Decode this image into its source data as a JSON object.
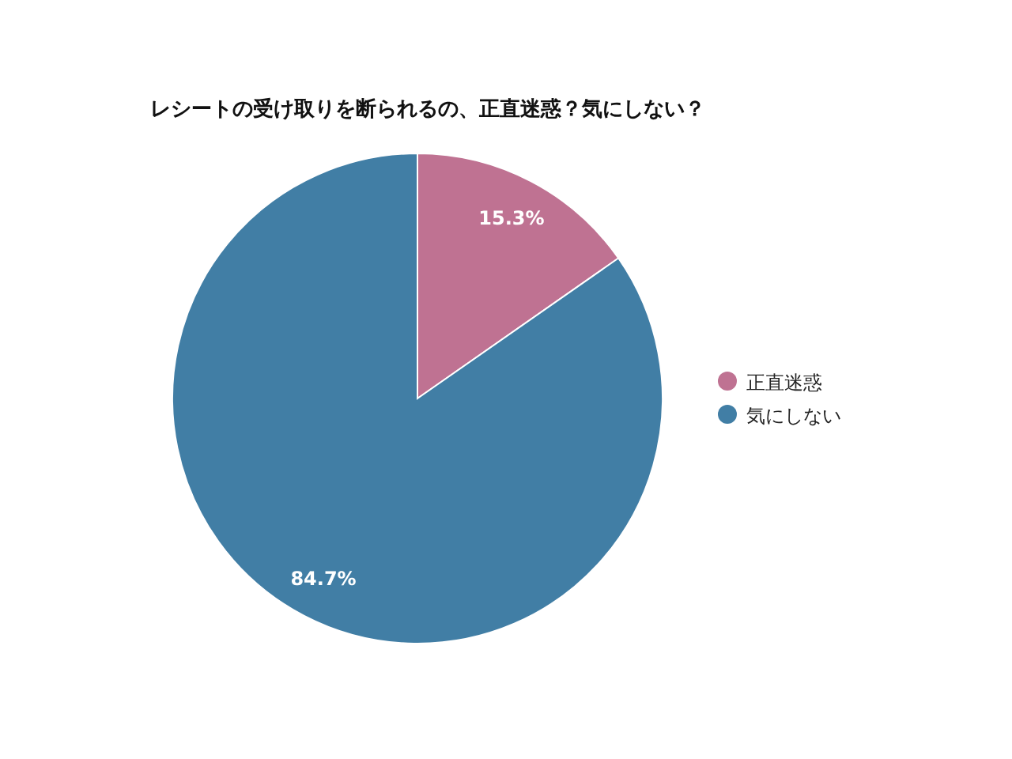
{
  "chart_data": {
    "type": "pie",
    "title": "レシートの受け取りを断られるの、正直迷惑？気にしない？",
    "categories": [
      "正直迷惑",
      "気にしない"
    ],
    "values": [
      15.3,
      84.7
    ],
    "colors": [
      "#bf7292",
      "#417ea5"
    ],
    "value_labels": [
      "15.3%",
      "84.7%"
    ],
    "legend": "right"
  }
}
